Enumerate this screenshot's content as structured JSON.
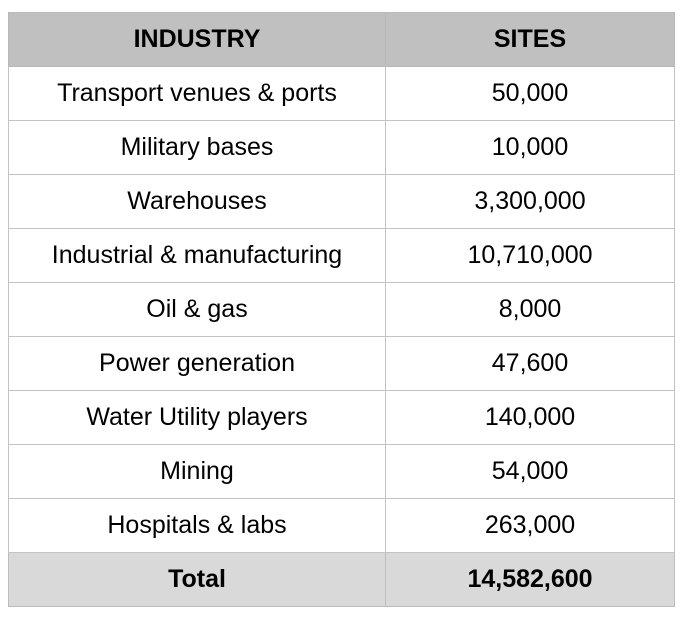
{
  "table": {
    "columns": [
      "INDUSTRY",
      "SITES"
    ],
    "rows": [
      {
        "industry": "Transport venues & ports",
        "sites": "50,000"
      },
      {
        "industry": "Military bases",
        "sites": "10,000"
      },
      {
        "industry": "Warehouses",
        "sites": "3,300,000"
      },
      {
        "industry": "Industrial & manufacturing",
        "sites": "10,710,000"
      },
      {
        "industry": "Oil & gas",
        "sites": "8,000"
      },
      {
        "industry": "Power generation",
        "sites": "47,600"
      },
      {
        "industry": "Water Utility players",
        "sites": "140,000"
      },
      {
        "industry": "Mining",
        "sites": "54,000"
      },
      {
        "industry": "Hospitals & labs",
        "sites": "263,000"
      }
    ],
    "total": {
      "label": "Total",
      "sites": "14,582,600"
    }
  },
  "colors": {
    "background": "#ffffff",
    "header_bg": "#c0c0c0",
    "total_bg": "#d9d9d9",
    "border": "#c3c3c3",
    "text": "#000000"
  },
  "chart_data": {
    "type": "table",
    "title": "",
    "columns": [
      "INDUSTRY",
      "SITES"
    ],
    "rows": [
      [
        "Transport venues & ports",
        50000
      ],
      [
        "Military bases",
        10000
      ],
      [
        "Warehouses",
        3300000
      ],
      [
        "Industrial & manufacturing",
        10710000
      ],
      [
        "Oil & gas",
        8000
      ],
      [
        "Power generation",
        47600
      ],
      [
        "Water Utility players",
        140000
      ],
      [
        "Mining",
        54000
      ],
      [
        "Hospitals & labs",
        263000
      ]
    ],
    "total_row": [
      "Total",
      14582600
    ]
  }
}
